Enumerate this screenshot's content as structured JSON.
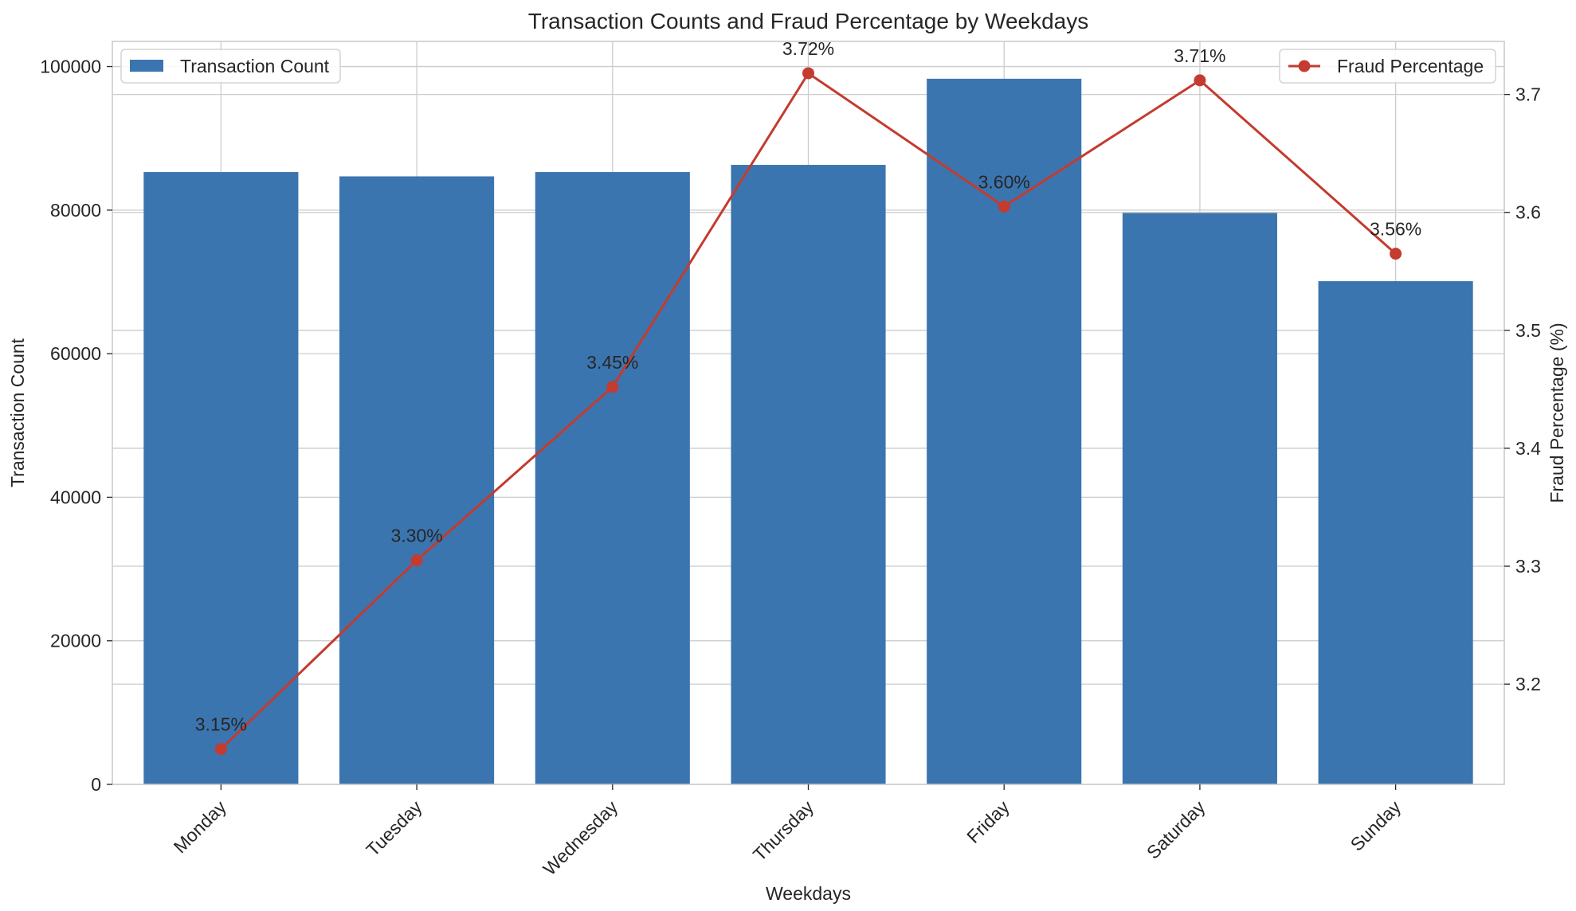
{
  "chart_data": {
    "type": "bar",
    "title": "Transaction Counts and Fraud Percentage by Weekdays",
    "xlabel": "Weekdays",
    "ylabel": "Transaction Count",
    "y2label": "Fraud Percentage (%)",
    "categories": [
      "Monday",
      "Tuesday",
      "Wednesday",
      "Thursday",
      "Friday",
      "Saturday",
      "Sunday"
    ],
    "ylim": [
      0,
      103500
    ],
    "y2lim": [
      3.115,
      3.745
    ],
    "yticks": [
      0,
      20000,
      40000,
      60000,
      80000,
      100000
    ],
    "y2ticks": [
      3.2,
      3.3,
      3.4,
      3.5,
      3.6,
      3.7
    ],
    "grid": true,
    "series": [
      {
        "name": "Transaction Count",
        "kind": "bar",
        "axis": "left",
        "color": "#3b75af",
        "values": [
          85300,
          84700,
          85300,
          86300,
          98300,
          79600,
          70100
        ]
      },
      {
        "name": "Fraud Percentage",
        "kind": "line",
        "axis": "right",
        "color": "#c43b2f",
        "values": [
          3.145,
          3.305,
          3.452,
          3.718,
          3.605,
          3.712,
          3.565
        ],
        "labels": [
          "3.15%",
          "3.30%",
          "3.45%",
          "3.72%",
          "3.60%",
          "3.71%",
          "3.56%"
        ]
      }
    ],
    "legends": [
      {
        "series": "Transaction Count",
        "placement": "top-left"
      },
      {
        "series": "Fraud Percentage",
        "placement": "top-right"
      }
    ]
  }
}
